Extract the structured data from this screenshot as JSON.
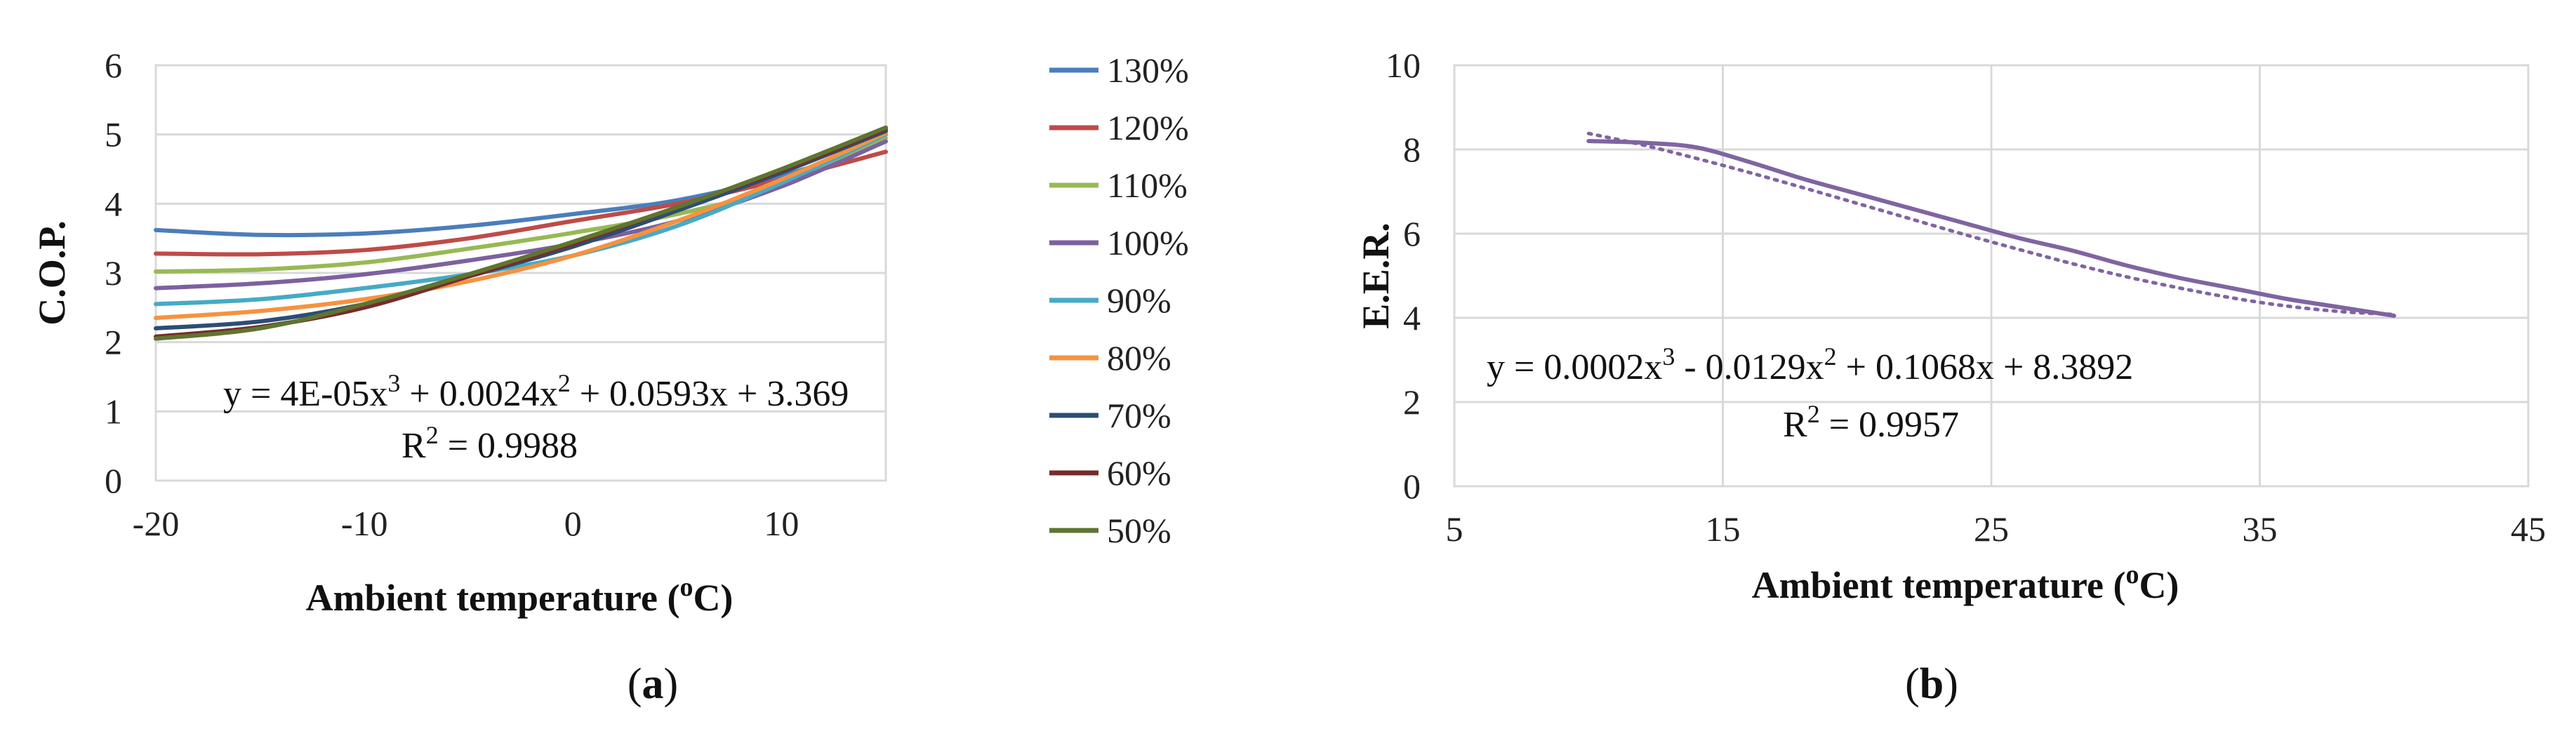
{
  "chart_data": [
    {
      "type": "line",
      "panel_label": "a",
      "xlabel": "Ambient temperature (oC)",
      "ylabel": "C.O.P.",
      "xlim": [
        -20,
        15
      ],
      "ylim": [
        0,
        6
      ],
      "x_ticks": [
        -20,
        -10,
        0,
        10
      ],
      "y_ticks": [
        0,
        1,
        2,
        3,
        4,
        5,
        6
      ],
      "grid": true,
      "legend_position": "right",
      "equation": "y = 4E-05x3 + 0.0024x2 + 0.0593x + 3.369",
      "r_squared": "R2 = 0.9988",
      "x": [
        -20,
        -15,
        -10,
        -5,
        0,
        5,
        10,
        15
      ],
      "series": [
        {
          "name": "130%",
          "color": "#4a7ebb",
          "values": [
            3.62,
            3.55,
            3.57,
            3.68,
            3.85,
            4.05,
            4.4,
            4.9
          ]
        },
        {
          "name": "120%",
          "color": "#be4b48",
          "values": [
            3.28,
            3.27,
            3.33,
            3.5,
            3.75,
            4.0,
            4.35,
            4.75
          ]
        },
        {
          "name": "110%",
          "color": "#98b954",
          "values": [
            3.02,
            3.05,
            3.15,
            3.35,
            3.58,
            3.85,
            4.25,
            4.95
          ]
        },
        {
          "name": "100%",
          "color": "#7d60a0",
          "values": [
            2.78,
            2.85,
            2.98,
            3.18,
            3.42,
            3.75,
            4.25,
            4.9
          ]
        },
        {
          "name": "90%",
          "color": "#46aac5",
          "values": [
            2.55,
            2.62,
            2.78,
            2.98,
            3.25,
            3.68,
            4.3,
            5.0
          ]
        },
        {
          "name": "80%",
          "color": "#f69240",
          "values": [
            2.35,
            2.45,
            2.62,
            2.88,
            3.25,
            3.75,
            4.35,
            5.02
          ]
        },
        {
          "name": "70%",
          "color": "#2c4d75",
          "values": [
            2.2,
            2.3,
            2.55,
            2.95,
            3.38,
            3.9,
            4.45,
            5.05
          ]
        },
        {
          "name": "60%",
          "color": "#772c2a",
          "values": [
            2.08,
            2.22,
            2.5,
            2.95,
            3.42,
            3.95,
            4.48,
            5.08
          ]
        },
        {
          "name": "50%",
          "color": "#5f7530",
          "values": [
            2.05,
            2.2,
            2.55,
            2.98,
            3.45,
            3.95,
            4.5,
            5.1
          ]
        }
      ]
    },
    {
      "type": "line",
      "panel_label": "b",
      "xlabel": "Ambient temperature (oC)",
      "ylabel": "E.E.R.",
      "xlim": [
        5,
        45
      ],
      "ylim": [
        0,
        10
      ],
      "x_ticks": [
        5,
        15,
        25,
        35,
        45
      ],
      "y_ticks": [
        0,
        2,
        4,
        6,
        8,
        10
      ],
      "grid": true,
      "equation": "y = 0.0002x3 - 0.0129x2 + 0.1068x + 8.3892",
      "r_squared": "R2 = 0.9957",
      "x": [
        10,
        12,
        14,
        16,
        18,
        20,
        22,
        24,
        26,
        28,
        30,
        32,
        34,
        36,
        38,
        40
      ],
      "series": [
        {
          "color": "#8064a2",
          "style": "solid",
          "values": [
            8.2,
            8.16,
            8.05,
            7.7,
            7.3,
            6.95,
            6.6,
            6.25,
            5.9,
            5.6,
            5.25,
            4.95,
            4.7,
            4.45,
            4.25,
            4.05
          ]
        },
        {
          "color": "#8064a2",
          "style": "dotted",
          "trendline": true,
          "values": [
            8.38,
            8.11,
            7.79,
            7.45,
            7.09,
            6.72,
            6.35,
            5.98,
            5.63,
            5.29,
            4.98,
            4.71,
            4.47,
            4.28,
            4.15,
            4.08
          ]
        }
      ]
    }
  ]
}
